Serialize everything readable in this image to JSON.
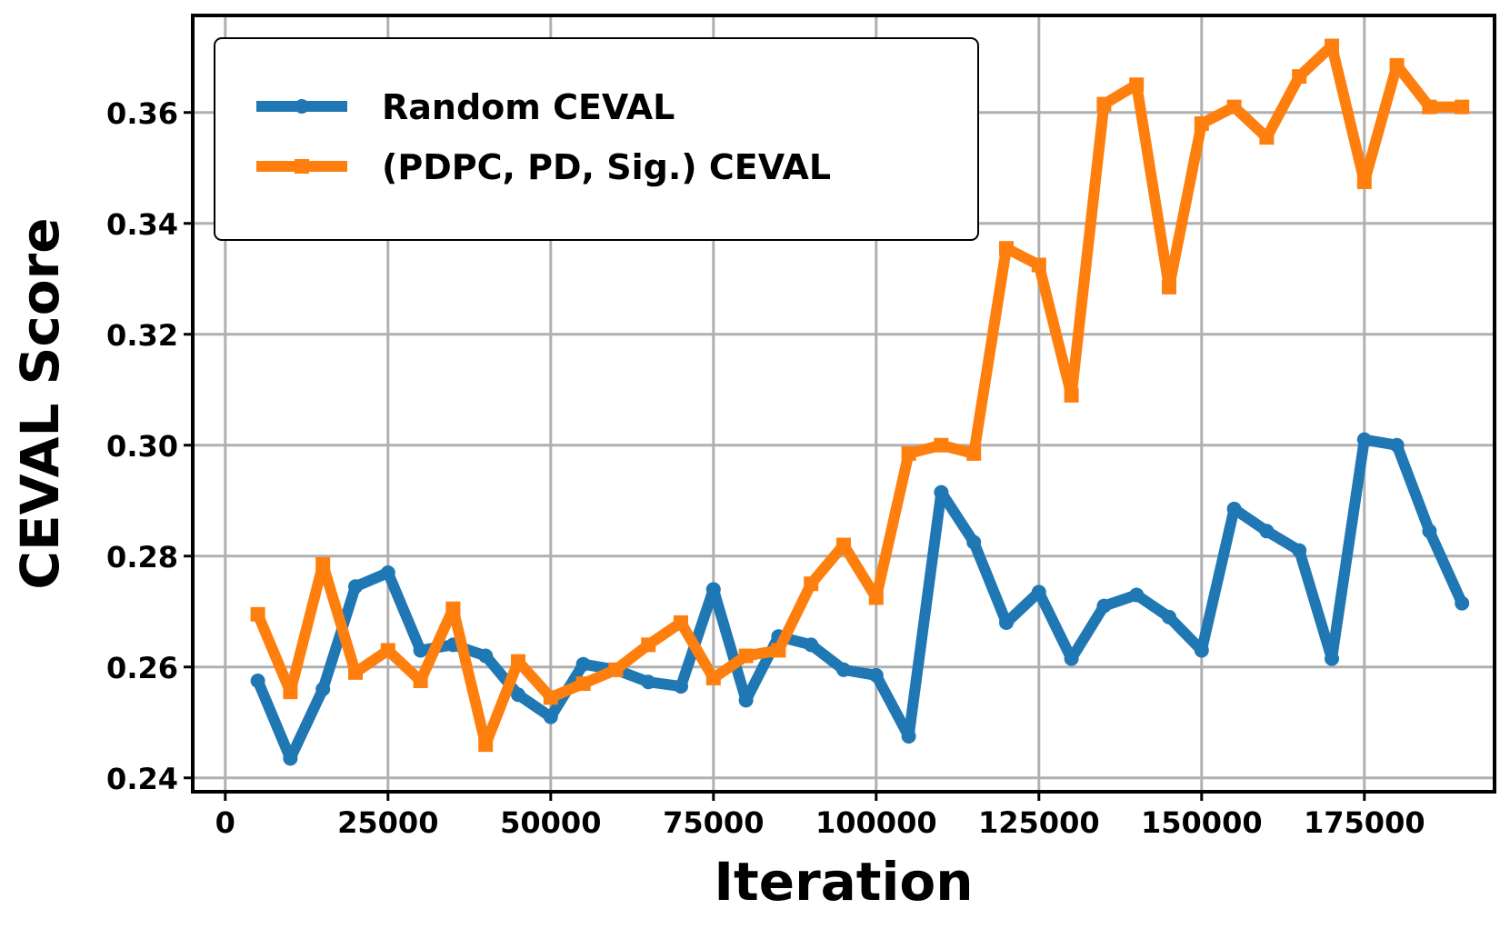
{
  "chart_data": {
    "type": "line",
    "xlabel": "Iteration",
    "ylabel": "CEVAL Score",
    "xlim": [
      -5000,
      195000
    ],
    "ylim": [
      0.2375,
      0.3775
    ],
    "xticks": [
      0,
      25000,
      50000,
      75000,
      100000,
      125000,
      150000,
      175000
    ],
    "xtick_labels": [
      "0",
      "25000",
      "50000",
      "75000",
      "100000",
      "125000",
      "150000",
      "175000"
    ],
    "yticks": [
      0.24,
      0.26,
      0.28,
      0.3,
      0.32,
      0.34,
      0.36
    ],
    "ytick_labels": [
      "0.24",
      "0.26",
      "0.28",
      "0.30",
      "0.32",
      "0.34",
      "0.36"
    ],
    "grid": true,
    "legend_position": "top-left",
    "x": [
      5000,
      10000,
      15000,
      20000,
      25000,
      30000,
      35000,
      40000,
      45000,
      50000,
      55000,
      60000,
      65000,
      70000,
      75000,
      80000,
      85000,
      90000,
      95000,
      100000,
      105000,
      110000,
      115000,
      120000,
      125000,
      130000,
      135000,
      140000,
      145000,
      150000,
      155000,
      160000,
      165000,
      170000,
      175000,
      180000,
      185000,
      190000
    ],
    "series": [
      {
        "name": "Random CEVAL",
        "color": "#1f77b4",
        "marker": "circle",
        "values": [
          0.2575,
          0.2435,
          0.256,
          0.2745,
          0.277,
          0.263,
          0.264,
          0.262,
          0.255,
          0.251,
          0.2605,
          0.2595,
          0.2573,
          0.2565,
          0.274,
          0.254,
          0.2655,
          0.264,
          0.2595,
          0.2585,
          0.2475,
          0.2915,
          0.2825,
          0.268,
          0.2735,
          0.2615,
          0.271,
          0.273,
          0.269,
          0.263,
          0.2885,
          0.2845,
          0.281,
          0.2615,
          0.301,
          0.3,
          0.2845,
          0.2715
        ]
      },
      {
        "name": "(PDPC, PD, Sig.) CEVAL",
        "color": "#ff7f0e",
        "marker": "square",
        "values": [
          0.2695,
          0.2555,
          0.2785,
          0.259,
          0.263,
          0.2575,
          0.2705,
          0.246,
          0.261,
          0.2545,
          0.257,
          0.2595,
          0.264,
          0.268,
          0.258,
          0.262,
          0.263,
          0.275,
          0.282,
          0.2725,
          0.2985,
          0.3,
          0.2985,
          0.3355,
          0.3325,
          0.309,
          0.3615,
          0.365,
          0.3285,
          0.358,
          0.361,
          0.3555,
          0.3665,
          0.372,
          0.3475,
          0.3685,
          0.361,
          0.361
        ]
      }
    ]
  }
}
